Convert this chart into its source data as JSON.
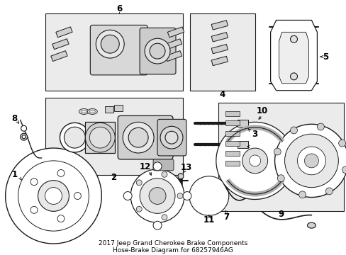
{
  "title_line1": "2017 Jeep Grand Cherokee Brake Components",
  "title_line2": "Hose-Brake Diagram for 68257946AG",
  "bg_color": "#ffffff",
  "lc": "#1a1a1a",
  "box_fill": "#ebebeb",
  "fig_w": 4.89,
  "fig_h": 3.6,
  "dpi": 100
}
